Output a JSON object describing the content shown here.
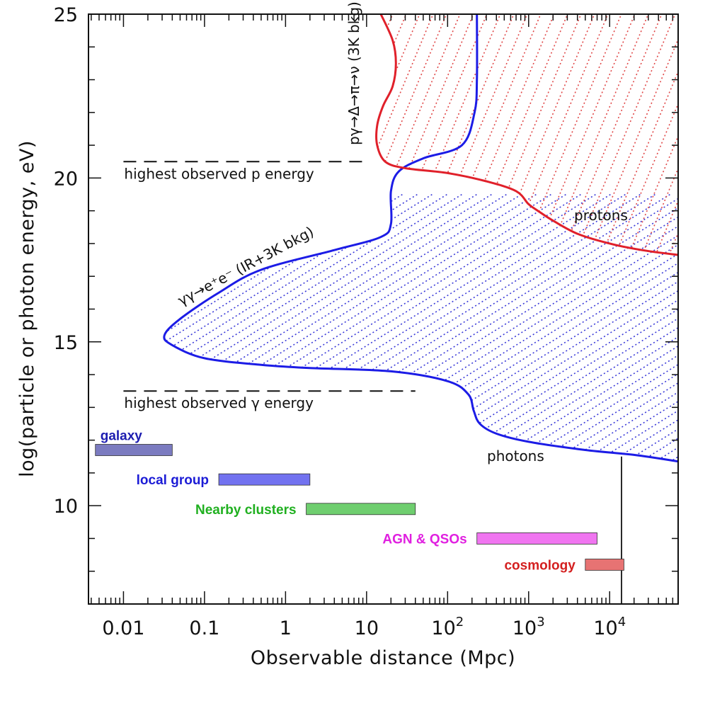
{
  "chart_data": {
    "type": "line",
    "title": "",
    "xlabel": "Observable distance (Mpc)",
    "ylabel": "log(particle or photon energy, eV)",
    "xscale": "log",
    "xlim": [
      0.0037,
      70000
    ],
    "ylim": [
      7,
      25
    ],
    "x_tick_labels": [
      {
        "value": 0.01,
        "label": "0.01"
      },
      {
        "value": 0.1,
        "label": "0.1"
      },
      {
        "value": 1,
        "label": "1"
      },
      {
        "value": 10,
        "label": "10"
      },
      {
        "value": 100,
        "base": "10",
        "exp": "2"
      },
      {
        "value": 1000,
        "base": "10",
        "exp": "3"
      },
      {
        "value": 10000,
        "base": "10",
        "exp": "4"
      }
    ],
    "y_tick_labels": [
      {
        "value": 10,
        "label": "10"
      },
      {
        "value": 15,
        "label": "15"
      },
      {
        "value": 20,
        "label": "20"
      },
      {
        "value": 25,
        "label": "25"
      }
    ],
    "series": [
      {
        "name": "photons",
        "color": "#1c1ce6",
        "hatch_color": "#3a3ad8",
        "annotation": "γγ→e⁺e⁻ (IR+3K bkg)",
        "end_label": "photons",
        "points": [
          [
            230,
            25.0
          ],
          [
            230,
            23.0
          ],
          [
            215,
            22.0
          ],
          [
            150,
            21.0
          ],
          [
            50,
            20.6
          ],
          [
            25,
            20.2
          ],
          [
            20,
            19.6
          ],
          [
            20,
            18.6
          ],
          [
            15,
            18.2
          ],
          [
            4,
            17.8
          ],
          [
            0.5,
            17.2
          ],
          [
            0.15,
            16.5
          ],
          [
            0.05,
            15.7
          ],
          [
            0.032,
            15.2
          ],
          [
            0.04,
            14.9
          ],
          [
            0.1,
            14.5
          ],
          [
            0.5,
            14.3
          ],
          [
            2,
            14.2
          ],
          [
            20,
            14.1
          ],
          [
            100,
            13.8
          ],
          [
            180,
            13.4
          ],
          [
            210,
            12.9
          ],
          [
            250,
            12.5
          ],
          [
            400,
            12.2
          ],
          [
            1000,
            11.95
          ],
          [
            5000,
            11.7
          ],
          [
            20000,
            11.55
          ],
          [
            70000,
            11.35
          ]
        ]
      },
      {
        "name": "protons",
        "color": "#e0202a",
        "hatch_color": "#e04848",
        "annotation": "pγ→Δ→π→ν (3K bkg)",
        "end_label": "protons",
        "points": [
          [
            15,
            25.0
          ],
          [
            21,
            24.2
          ],
          [
            23,
            23.5
          ],
          [
            21,
            22.8
          ],
          [
            16,
            22.2
          ],
          [
            13.5,
            21.6
          ],
          [
            13.5,
            21.0
          ],
          [
            17,
            20.5
          ],
          [
            30,
            20.3
          ],
          [
            100,
            20.15
          ],
          [
            300,
            19.9
          ],
          [
            700,
            19.6
          ],
          [
            1000,
            19.2
          ],
          [
            1300,
            19.0
          ],
          [
            2000,
            18.7
          ],
          [
            4000,
            18.3
          ],
          [
            10000,
            18.0
          ],
          [
            25000,
            17.8
          ],
          [
            70000,
            17.65
          ]
        ]
      }
    ],
    "reference_lines": [
      {
        "name": "p-energy",
        "y": 20.5,
        "x_start": 0.01,
        "x_end": 9,
        "label": "highest observed p energy"
      },
      {
        "name": "gamma-energy",
        "y": 13.5,
        "x_start": 0.01,
        "x_end": 40,
        "label": "highest observed γ energy"
      }
    ],
    "vertical_line": {
      "x": 14000,
      "y_bottom": 7,
      "y_top": 11.5
    },
    "scale_bars": [
      {
        "label": "galaxy",
        "x_start": 0.0045,
        "x_end": 0.04,
        "y": 11.7,
        "fill": "#7b7bc0",
        "text_color": "#1d1db0"
      },
      {
        "label": "local group",
        "x_start": 0.15,
        "x_end": 2,
        "y": 10.8,
        "fill": "#7272f0",
        "text_color": "#1c1cd6"
      },
      {
        "label": "Nearby clusters",
        "x_start": 1.8,
        "x_end": 40,
        "y": 9.9,
        "fill": "#6fce6f",
        "text_color": "#20b020"
      },
      {
        "label": "AGN & QSOs",
        "x_start": 230,
        "x_end": 7000,
        "y": 9.0,
        "fill": "#f075f0",
        "text_color": "#e020e0"
      },
      {
        "label": "cosmology",
        "x_start": 5000,
        "x_end": 15000,
        "y": 8.2,
        "fill": "#e77373",
        "text_color": "#d42020"
      }
    ]
  }
}
